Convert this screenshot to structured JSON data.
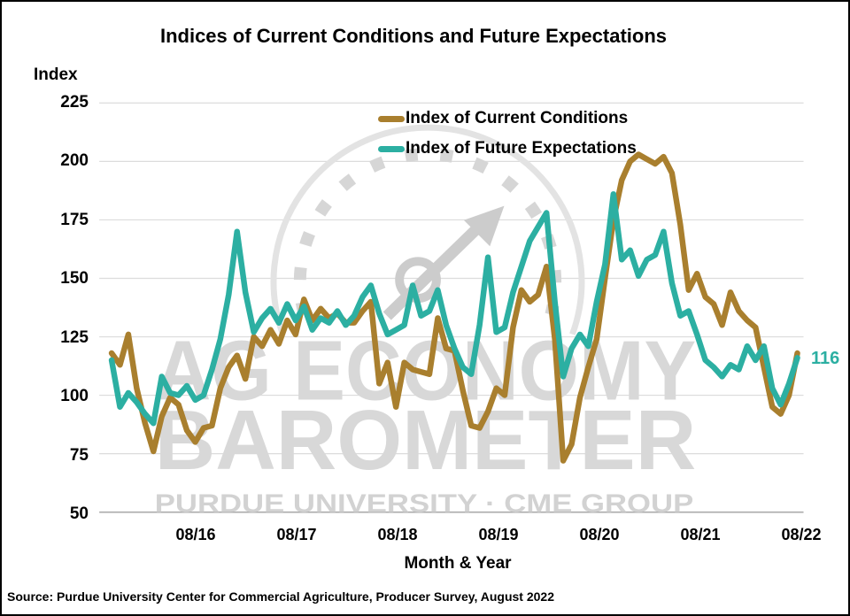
{
  "title": "Indices of Current Conditions and Future Expectations",
  "y_axis_title": "Index",
  "x_axis_title": "Month & Year",
  "source_note": "Source: Purdue University Center for Commercial Agriculture, Producer Survey, August 2022",
  "annotation": {
    "text": "116",
    "color": "#2CAFA2"
  },
  "watermark": {
    "line1": "AG ECONOMY",
    "line2": "BAROMETER",
    "line3": "PURDUE UNIVERSITY · CME GROUP",
    "color_large": "#D8D8D8",
    "color_small": "#D2D2D2",
    "gauge_color": "#CCCCCC"
  },
  "colors": {
    "current_conditions": "#A97F2E",
    "future_expectations": "#2CAFA2",
    "gridline": "#DCDCDC",
    "axis_line": "#ABABAB"
  },
  "chart_data": {
    "type": "line",
    "title": "Indices of Current Conditions and Future Expectations",
    "xlabel": "Month & Year",
    "ylabel": "Index",
    "x_start": "10/2015",
    "frequency": "monthly",
    "ylim": [
      50,
      235
    ],
    "grid": "horizontal",
    "legend_position": "top-center-inside",
    "y_ticks": [
      225,
      200,
      175,
      150,
      125,
      100,
      75,
      50
    ],
    "x_ticks": [
      {
        "label": "08/16",
        "month_index": 10
      },
      {
        "label": "08/17",
        "month_index": 22
      },
      {
        "label": "08/18",
        "month_index": 34
      },
      {
        "label": "08/19",
        "month_index": 46
      },
      {
        "label": "08/20",
        "month_index": 58
      },
      {
        "label": "08/21",
        "month_index": 70
      },
      {
        "label": "08/22",
        "month_index": 82
      }
    ],
    "series": [
      {
        "name": "Index of Current Conditions",
        "color": "#A97F2E",
        "values": [
          118,
          113,
          126,
          103,
          88,
          76,
          91,
          99,
          96,
          85,
          80,
          86,
          87,
          103,
          112,
          117,
          107,
          125,
          121,
          128,
          122,
          132,
          126,
          141,
          132,
          137,
          133,
          135,
          131,
          131,
          136,
          140,
          105,
          114,
          95,
          114,
          111,
          110,
          109,
          133,
          120,
          119,
          102,
          87,
          86,
          93,
          103,
          100,
          129,
          145,
          140,
          143,
          155,
          124,
          72,
          79,
          99,
          112,
          124,
          150,
          175,
          192,
          200,
          203,
          201,
          199,
          202,
          195,
          173,
          145,
          152,
          142,
          139,
          130,
          144,
          136,
          132,
          129,
          112,
          95,
          92,
          100,
          118
        ]
      },
      {
        "name": "Index of Future Expectations",
        "color": "#2CAFA2",
        "values": [
          115,
          95,
          101,
          97,
          92,
          88,
          108,
          101,
          100,
          104,
          98,
          100,
          111,
          124,
          143,
          170,
          144,
          127,
          133,
          137,
          131,
          139,
          132,
          138,
          128,
          133,
          131,
          136,
          130,
          134,
          142,
          147,
          135,
          126,
          128,
          130,
          147,
          134,
          136,
          145,
          130,
          120,
          112,
          109,
          130,
          159,
          127,
          129,
          144,
          155,
          166,
          172,
          178,
          140,
          108,
          120,
          126,
          121,
          140,
          156,
          186,
          158,
          162,
          151,
          158,
          160,
          170,
          148,
          134,
          136,
          126,
          115,
          112,
          108,
          113,
          111,
          121,
          115,
          121,
          103,
          96,
          105,
          116
        ]
      }
    ],
    "end_label": {
      "series": "Index of Future Expectations",
      "value": 116
    }
  }
}
